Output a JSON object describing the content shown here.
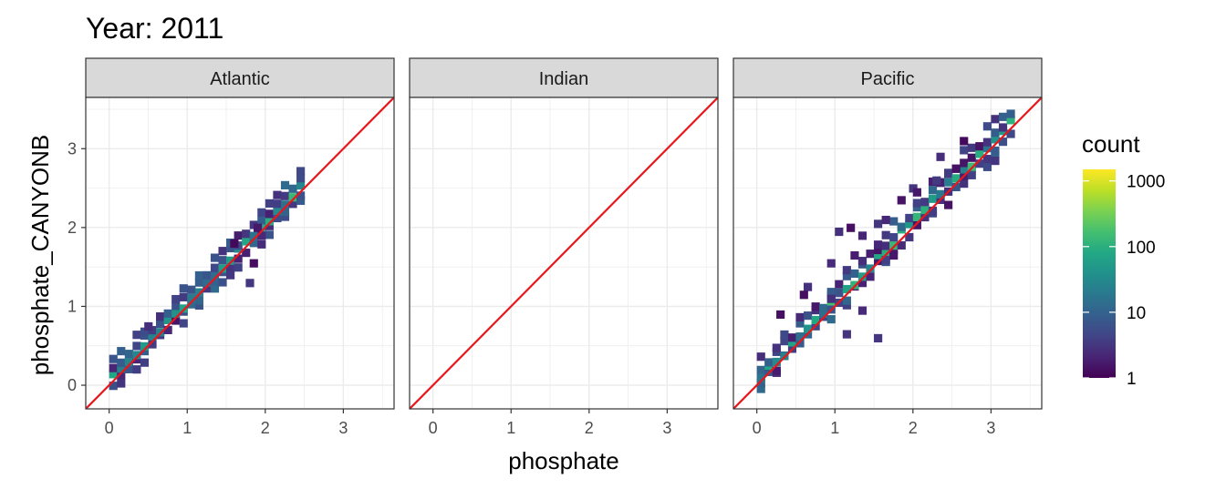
{
  "title": "Year: 2011",
  "chart_data": {
    "type": "heatmap",
    "subtype": "2d-binned count scatter with 1:1 reference line, faceted",
    "xlabel": "phosphate",
    "ylabel": "phosphate_CANYONB",
    "xlim": [
      -0.3,
      3.65
    ],
    "ylim": [
      -0.3,
      3.65
    ],
    "x_ticks": [
      0,
      1,
      2,
      3
    ],
    "y_ticks": [
      0,
      1,
      2,
      3
    ],
    "grid": true,
    "reference_line": {
      "slope": 1,
      "intercept": 0,
      "color": "#e8171b"
    },
    "facets": [
      {
        "name": "Atlantic",
        "ridge": {
          "x_range": [
            0.0,
            2.4
          ],
          "offset": 0.06,
          "spread": 0.07
        },
        "outliers": [
          [
            1.8,
            1.5
          ],
          [
            1.75,
            1.25
          ],
          [
            0.45,
            0.7
          ],
          [
            1.55,
            1.75
          ],
          [
            1.9,
            1.85
          ],
          [
            1.85,
            1.95
          ]
        ]
      },
      {
        "name": "Indian",
        "ridge": null,
        "outliers": []
      },
      {
        "name": "Pacific",
        "ridge": {
          "x_range": [
            0.0,
            3.25
          ],
          "offset": 0.08,
          "spread": 0.12
        },
        "outliers": [
          [
            0.25,
            0.85
          ],
          [
            0.6,
            1.2
          ],
          [
            0.55,
            1.1
          ],
          [
            0.9,
            1.5
          ],
          [
            1.0,
            1.9
          ],
          [
            1.15,
            1.95
          ],
          [
            1.3,
            1.85
          ],
          [
            1.2,
            1.6
          ],
          [
            1.5,
            2.0
          ],
          [
            1.6,
            2.05
          ],
          [
            1.8,
            2.3
          ],
          [
            1.95,
            2.45
          ],
          [
            2.0,
            2.4
          ],
          [
            1.5,
            0.55
          ],
          [
            1.3,
            0.9
          ],
          [
            1.1,
            0.6
          ],
          [
            2.3,
            2.85
          ],
          [
            2.6,
            3.05
          ],
          [
            3.0,
            2.8
          ],
          [
            2.25,
            2.55
          ],
          [
            0.9,
            1.05
          ],
          [
            1.7,
            1.6
          ],
          [
            2.5,
            2.7
          ]
        ]
      }
    ],
    "legend": {
      "title": "count",
      "scale": "log10",
      "breaks": [
        "1",
        "10",
        "100",
        "1000"
      ],
      "colors": [
        "#440154",
        "#482475",
        "#414487",
        "#355f8d",
        "#2a788e",
        "#21918c",
        "#22a884",
        "#44bf70",
        "#7ad151",
        "#bddf26",
        "#fde725"
      ],
      "placement": "right"
    }
  }
}
